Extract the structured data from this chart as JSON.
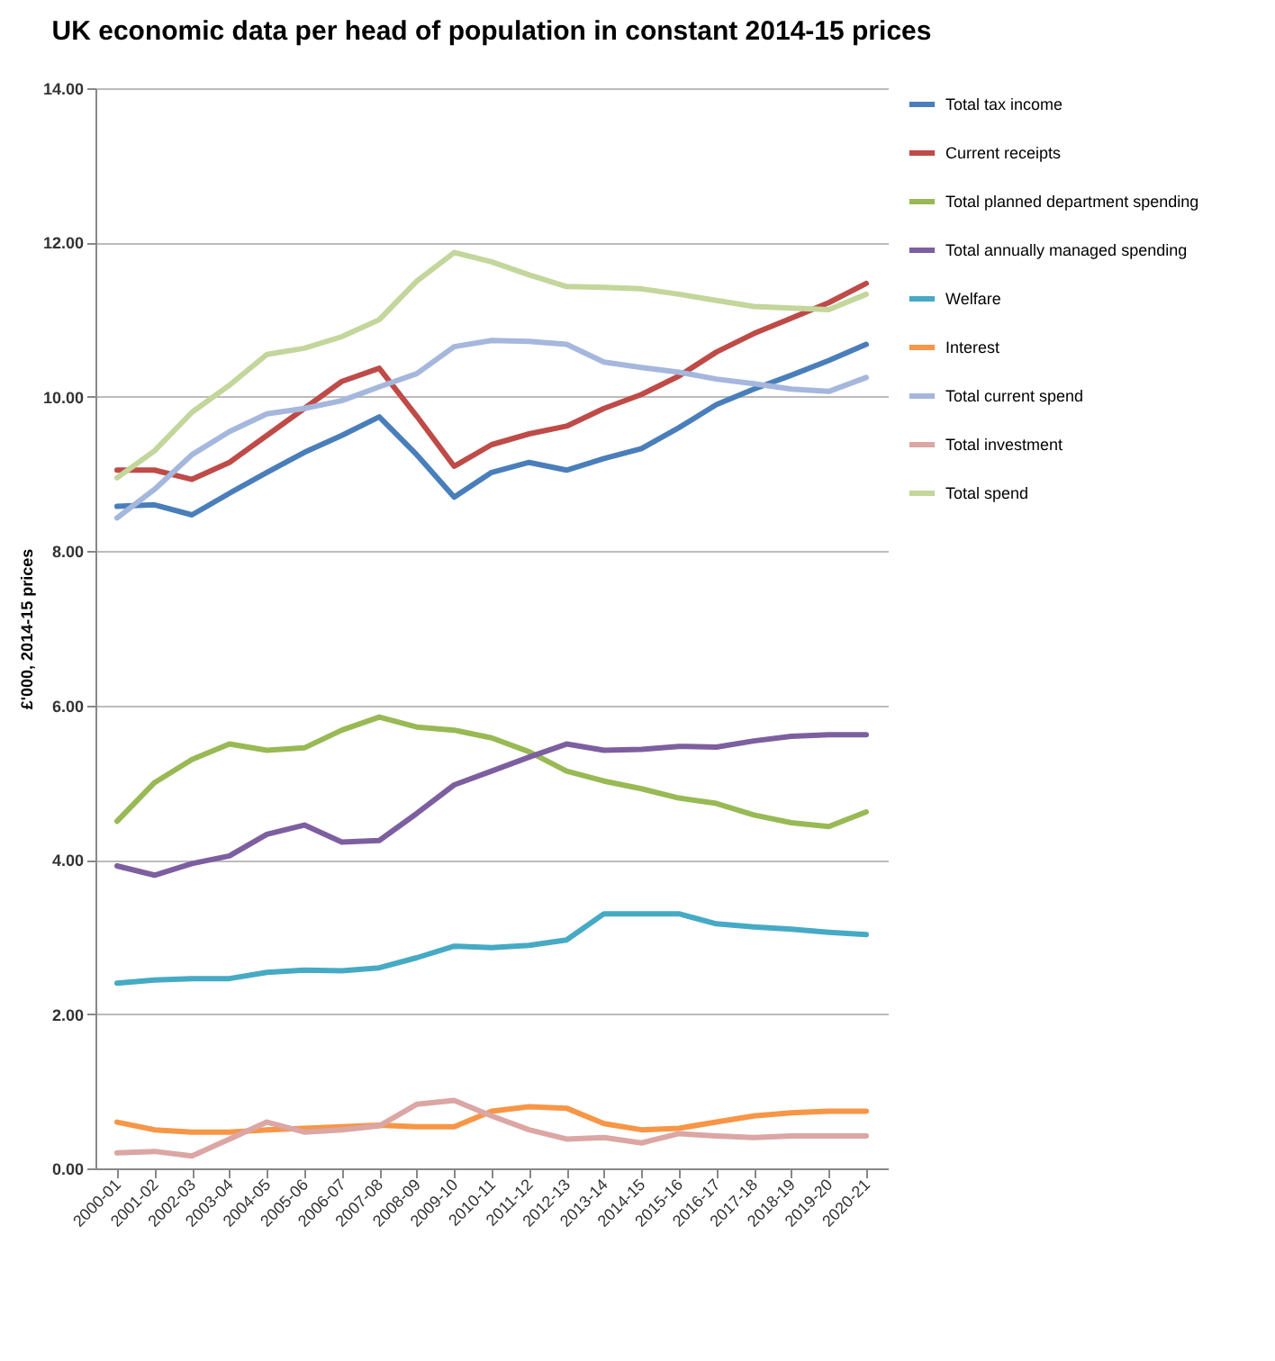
{
  "chart_data": {
    "type": "line",
    "title": "UK economic data per head of population in constant 2014-15 prices",
    "ylabel": "£'000, 2014-15 prices",
    "categories": [
      "2000-01",
      "2001-02",
      "2002-03",
      "2003-04",
      "2004-05",
      "2005-06",
      "2006-07",
      "2007-08",
      "2008-09",
      "2009-10",
      "2010-11",
      "2011-12",
      "2012-13",
      "2013-14",
      "2014-15",
      "2015-16",
      "2016-17",
      "2017-18",
      "2018-19",
      "2019-20",
      "2020-21"
    ],
    "ylim": [
      0,
      14
    ],
    "yticks": [
      {
        "value": 0,
        "label": "0.00"
      },
      {
        "value": 2,
        "label": "2.00"
      },
      {
        "value": 4,
        "label": "4.00"
      },
      {
        "value": 6,
        "label": "6.00"
      },
      {
        "value": 8,
        "label": "8.00"
      },
      {
        "value": 10,
        "label": "10.00"
      },
      {
        "value": 12,
        "label": "12.00"
      },
      {
        "value": 14,
        "label": "14.00"
      }
    ],
    "grid": "y",
    "legend": "right",
    "marker": "none",
    "line_style": "solid",
    "series": [
      {
        "name": "Total tax income",
        "color": "#4a7ebb",
        "values": [
          8.58,
          8.6,
          8.47,
          8.75,
          9.02,
          9.28,
          9.5,
          9.74,
          9.25,
          8.7,
          9.02,
          9.15,
          9.05,
          9.2,
          9.33,
          9.6,
          9.9,
          10.1,
          10.28,
          10.47,
          10.68
        ]
      },
      {
        "name": "Current receipts",
        "color": "#be4b48",
        "values": [
          9.05,
          9.05,
          8.93,
          9.15,
          9.5,
          9.85,
          10.2,
          10.37,
          9.75,
          9.1,
          9.38,
          9.52,
          9.62,
          9.85,
          10.03,
          10.27,
          10.58,
          10.82,
          11.02,
          11.22,
          11.47
        ]
      },
      {
        "name": "Total planned department spending",
        "color": "#98b954",
        "values": [
          4.5,
          5.0,
          5.3,
          5.5,
          5.42,
          5.45,
          5.68,
          5.85,
          5.72,
          5.68,
          5.58,
          5.4,
          5.15,
          5.02,
          4.92,
          4.8,
          4.73,
          4.58,
          4.48,
          4.43,
          4.62
        ]
      },
      {
        "name": "Total annually managed spending",
        "color": "#7d5fa0",
        "values": [
          3.92,
          3.8,
          3.95,
          4.05,
          4.33,
          4.45,
          4.23,
          4.25,
          4.6,
          4.97,
          5.15,
          5.33,
          5.5,
          5.42,
          5.43,
          5.47,
          5.46,
          5.54,
          5.6,
          5.62,
          5.62
        ]
      },
      {
        "name": "Welfare",
        "color": "#46aac5",
        "values": [
          2.4,
          2.44,
          2.46,
          2.46,
          2.54,
          2.57,
          2.56,
          2.6,
          2.73,
          2.88,
          2.86,
          2.89,
          2.96,
          3.3,
          3.3,
          3.3,
          3.17,
          3.13,
          3.1,
          3.06,
          3.03
        ]
      },
      {
        "name": "Interest",
        "color": "#f79646",
        "values": [
          0.6,
          0.5,
          0.47,
          0.47,
          0.5,
          0.52,
          0.54,
          0.56,
          0.54,
          0.54,
          0.74,
          0.8,
          0.78,
          0.58,
          0.5,
          0.52,
          0.6,
          0.68,
          0.72,
          0.74,
          0.74
        ]
      },
      {
        "name": "Total current spend",
        "color": "#a5b7dd",
        "values": [
          8.43,
          8.8,
          9.25,
          9.55,
          9.78,
          9.85,
          9.95,
          10.13,
          10.3,
          10.65,
          10.73,
          10.72,
          10.68,
          10.45,
          10.38,
          10.32,
          10.23,
          10.17,
          10.1,
          10.07,
          10.25
        ]
      },
      {
        "name": "Total investment",
        "color": "#dba6a4",
        "values": [
          0.2,
          0.22,
          0.16,
          0.38,
          0.6,
          0.47,
          0.5,
          0.55,
          0.83,
          0.88,
          0.68,
          0.5,
          0.38,
          0.4,
          0.33,
          0.45,
          0.42,
          0.4,
          0.42,
          0.42,
          0.42
        ]
      },
      {
        "name": "Total spend",
        "color": "#c3d69b",
        "values": [
          8.95,
          9.3,
          9.8,
          10.15,
          10.55,
          10.63,
          10.78,
          11.0,
          11.5,
          11.87,
          11.75,
          11.58,
          11.43,
          11.42,
          11.4,
          11.33,
          11.25,
          11.17,
          11.15,
          11.13,
          11.33
        ]
      }
    ]
  }
}
